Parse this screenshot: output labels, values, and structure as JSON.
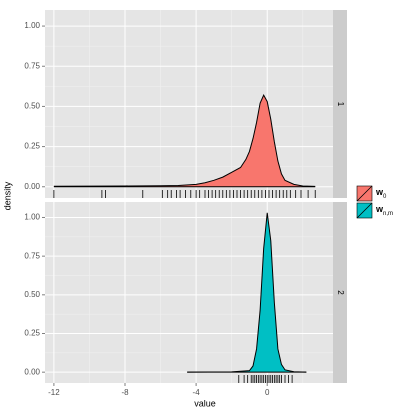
{
  "chart_data": {
    "type": "density",
    "xlabel": "value",
    "ylabel": "density",
    "xlim": [
      -12.5,
      3.7
    ],
    "xticks": [
      -12,
      -8,
      -4,
      0
    ],
    "ylim": [
      -0.07,
      1.1
    ],
    "yticks": [
      {
        "value": 0,
        "label": "0.00"
      },
      {
        "value": 0.25,
        "label": "0.25"
      },
      {
        "value": 0.5,
        "label": "0.50"
      },
      {
        "value": 0.75,
        "label": "0.75"
      },
      {
        "value": 1,
        "label": "1.00"
      }
    ],
    "grid": true,
    "facets": [
      {
        "label": "1",
        "series": {
          "name": "w",
          "subscript": "0",
          "color": "#F8766D",
          "x": [
            -12,
            -10,
            -8,
            -6,
            -5,
            -4,
            -3.5,
            -3,
            -2.5,
            -2,
            -1.5,
            -1.2,
            -1,
            -0.8,
            -0.6,
            -0.4,
            -0.2,
            0,
            0.2,
            0.4,
            0.6,
            0.8,
            1,
            1.5,
            2,
            2.7
          ],
          "values": [
            0.003,
            0.004,
            0.005,
            0.006,
            0.008,
            0.015,
            0.025,
            0.04,
            0.06,
            0.09,
            0.12,
            0.17,
            0.22,
            0.3,
            0.4,
            0.52,
            0.57,
            0.53,
            0.42,
            0.28,
            0.16,
            0.08,
            0.04,
            0.015,
            0.005,
            0.002
          ],
          "rug": [
            -12,
            -9.3,
            -9.1,
            -7,
            -5.9,
            -5.6,
            -5.4,
            -5.1,
            -4.9,
            -4.6,
            -4.3,
            -4,
            -3.8,
            -3.5,
            -3.3,
            -3.1,
            -2.9,
            -2.7,
            -2.5,
            -2.3,
            -2.1,
            -1.9,
            -1.7,
            -1.5,
            -1.3,
            -1.1,
            -0.9,
            -0.7,
            -0.5,
            -0.3,
            -0.1,
            0.1,
            0.3,
            0.5,
            0.7,
            0.9,
            1.1,
            1.3,
            1.6,
            1.9,
            2.3,
            2.7
          ]
        }
      },
      {
        "label": "2",
        "series": {
          "name": "w",
          "subscript": "n,m",
          "color": "#00BFC4",
          "x": [
            -4.5,
            -2,
            -1,
            -0.8,
            -0.6,
            -0.4,
            -0.2,
            0,
            0.2,
            0.4,
            0.6,
            0.8,
            1,
            1.5,
            2.2
          ],
          "values": [
            0,
            0.002,
            0.01,
            0.04,
            0.15,
            0.4,
            0.8,
            1.03,
            0.85,
            0.45,
            0.15,
            0.05,
            0.015,
            0.003,
            0
          ],
          "rug": [
            -1.6,
            -1.3,
            -1.1,
            -0.9,
            -0.8,
            -0.7,
            -0.6,
            -0.5,
            -0.4,
            -0.3,
            -0.2,
            -0.1,
            0,
            0.1,
            0.2,
            0.3,
            0.4,
            0.5,
            0.6,
            0.7,
            0.8,
            1,
            1.2,
            1.4
          ]
        }
      }
    ]
  }
}
